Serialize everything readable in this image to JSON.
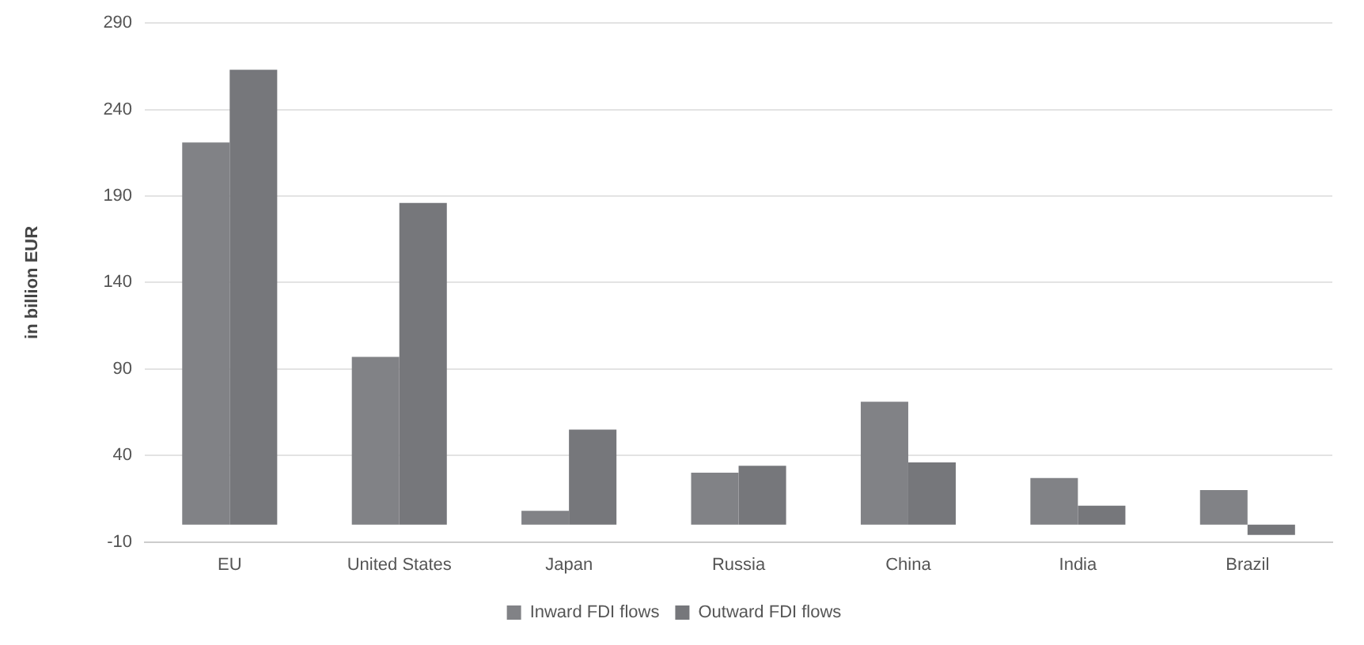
{
  "chart_data": {
    "type": "bar",
    "ylabel": "in billion EUR",
    "categories": [
      "EU",
      "United States",
      "Japan",
      "Russia",
      "China",
      "India",
      "Brazil"
    ],
    "series": [
      {
        "name": "Inward FDI flows",
        "color": "#818286",
        "values": [
          221,
          97,
          8,
          30,
          71,
          27,
          20
        ]
      },
      {
        "name": "Outward FDI flows",
        "color": "#76777b",
        "values": [
          263,
          186,
          55,
          34,
          36,
          11,
          -6
        ]
      }
    ],
    "ylim": [
      -10,
      290
    ],
    "yticks": [
      -10,
      40,
      90,
      140,
      190,
      240,
      290
    ],
    "grid": "y",
    "legend": "bottom"
  }
}
